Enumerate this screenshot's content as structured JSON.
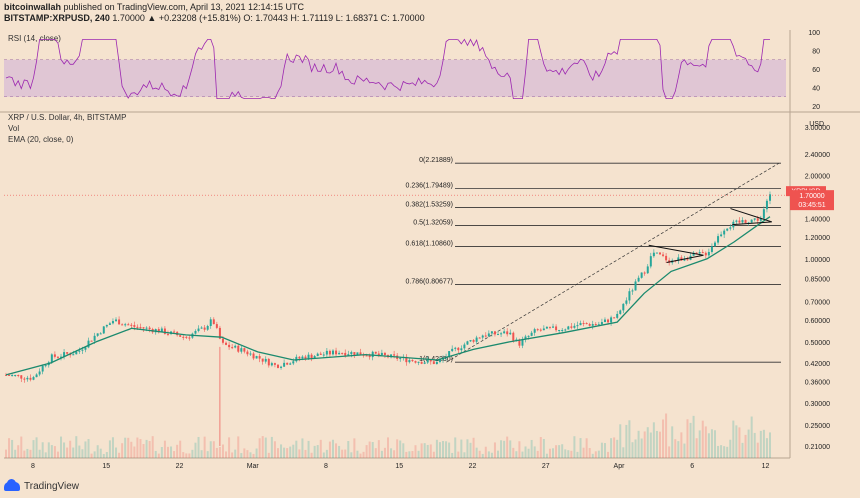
{
  "header": {
    "author": "bitcoinwallah",
    "published_line": "published on TradingView.com, April 13, 2021 12:14:15 UTC",
    "symbol_line": "BITSTAMP:XRPUSD, 240",
    "ohlc_line": "1.70000  ▲ +0.23208 (+15.81%)  O: 1.70443  H: 1.71119  L: 1.68371  C: 1.70000"
  },
  "rsi": {
    "label": "RSI (14, close)",
    "ticks": [
      "100",
      "80",
      "60",
      "40",
      "20"
    ],
    "band_color": "#d7b9d5",
    "line_color": "#9c27b0"
  },
  "main_labels": {
    "title": "XRP / U.S. Dollar, 4h, BITSTAMP",
    "vol": "Vol",
    "ema": "EMA (20, close, 0)",
    "currency": "USD"
  },
  "price_tag": {
    "symbol": "XRPUSD",
    "price": "1.70000",
    "countdown": "03:45:51",
    "color": "#ef5350"
  },
  "footer": {
    "brand": "TradingView"
  },
  "chart_data": {
    "type": "candlestick",
    "ylabel": "USD",
    "log_scale": true,
    "ylim": [
      0.19,
      3.4
    ],
    "y_ticks": [
      "3.00000",
      "2.40000",
      "2.00000",
      "1.70000",
      "1.40000",
      "1.20000",
      "1.00000",
      "0.85000",
      "0.70000",
      "0.60000",
      "0.50000",
      "0.42000",
      "0.36000",
      "0.30000",
      "0.25000",
      "0.21000"
    ],
    "x_ticks": [
      "8",
      "15",
      "22",
      "Mar",
      "8",
      "15",
      "22",
      "27",
      "Apr",
      "6",
      "12"
    ],
    "fib_levels": [
      {
        "label": "0(2.21889)",
        "value": 2.21889
      },
      {
        "label": "0.236(1.79489)",
        "value": 1.79489
      },
      {
        "label": "0.382(1.53259)",
        "value": 1.53259
      },
      {
        "label": "0.5(1.32059)",
        "value": 1.32059
      },
      {
        "label": "0.618(1.10860)",
        "value": 1.1086
      },
      {
        "label": "0.786(0.80677)",
        "value": 0.80677
      },
      {
        "label": "1(0.42230)",
        "value": 0.4223
      }
    ],
    "price_path": [
      {
        "x": 0,
        "y": 0.38
      },
      {
        "x": 3,
        "y": 0.37
      },
      {
        "x": 5,
        "y": 0.44
      },
      {
        "x": 8,
        "y": 0.46
      },
      {
        "x": 10,
        "y": 0.53
      },
      {
        "x": 12,
        "y": 0.6
      },
      {
        "x": 14,
        "y": 0.57
      },
      {
        "x": 17,
        "y": 0.55
      },
      {
        "x": 20,
        "y": 0.52
      },
      {
        "x": 22,
        "y": 0.56
      },
      {
        "x": 23,
        "y": 0.6
      },
      {
        "x": 24,
        "y": 0.49
      },
      {
        "x": 26,
        "y": 0.47
      },
      {
        "x": 28,
        "y": 0.44
      },
      {
        "x": 30,
        "y": 0.41
      },
      {
        "x": 33,
        "y": 0.44
      },
      {
        "x": 37,
        "y": 0.46
      },
      {
        "x": 41,
        "y": 0.45
      },
      {
        "x": 45,
        "y": 0.43
      },
      {
        "x": 48,
        "y": 0.42
      },
      {
        "x": 50,
        "y": 0.47
      },
      {
        "x": 53,
        "y": 0.53
      },
      {
        "x": 56,
        "y": 0.54
      },
      {
        "x": 57,
        "y": 0.49
      },
      {
        "x": 59,
        "y": 0.55
      },
      {
        "x": 62,
        "y": 0.56
      },
      {
        "x": 64,
        "y": 0.58
      },
      {
        "x": 66,
        "y": 0.58
      },
      {
        "x": 68,
        "y": 0.62
      },
      {
        "x": 71,
        "y": 0.9
      },
      {
        "x": 72,
        "y": 1.05
      },
      {
        "x": 74,
        "y": 0.98
      },
      {
        "x": 76,
        "y": 1.02
      },
      {
        "x": 78,
        "y": 1.05
      },
      {
        "x": 80,
        "y": 1.3
      },
      {
        "x": 82,
        "y": 1.37
      },
      {
        "x": 84,
        "y": 1.4
      },
      {
        "x": 85,
        "y": 1.7
      }
    ],
    "ema_path": [
      {
        "x": 0,
        "y": 0.38
      },
      {
        "x": 5,
        "y": 0.42
      },
      {
        "x": 10,
        "y": 0.5
      },
      {
        "x": 14,
        "y": 0.56
      },
      {
        "x": 20,
        "y": 0.53
      },
      {
        "x": 24,
        "y": 0.52
      },
      {
        "x": 28,
        "y": 0.46
      },
      {
        "x": 32,
        "y": 0.43
      },
      {
        "x": 40,
        "y": 0.45
      },
      {
        "x": 48,
        "y": 0.43
      },
      {
        "x": 52,
        "y": 0.47
      },
      {
        "x": 56,
        "y": 0.5
      },
      {
        "x": 62,
        "y": 0.54
      },
      {
        "x": 68,
        "y": 0.59
      },
      {
        "x": 71,
        "y": 0.75
      },
      {
        "x": 74,
        "y": 0.9
      },
      {
        "x": 78,
        "y": 1.0
      },
      {
        "x": 81,
        "y": 1.15
      },
      {
        "x": 84,
        "y": 1.35
      },
      {
        "x": 85,
        "y": 1.42
      }
    ],
    "x_max": 85,
    "trendline": {
      "from": {
        "x": 49,
        "y": 0.4223
      },
      "to": {
        "x": 86,
        "y": 2.21889
      }
    },
    "candle_color_up": "#26a69a",
    "candle_color_down": "#ef5350",
    "ema_color": "#1b8a6e"
  }
}
